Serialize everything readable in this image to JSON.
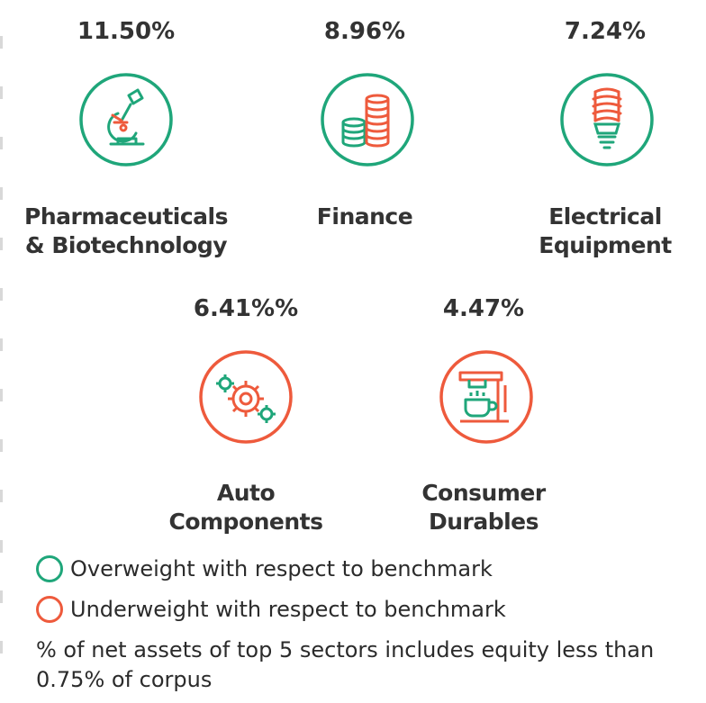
{
  "colors": {
    "overweight": "#1fa67a",
    "underweight": "#ee5a3c"
  },
  "sectors": [
    {
      "percent": "11.50%",
      "label_line1": "Pharmaceuticals",
      "label_line2": "& Biotechnology",
      "weight": "overweight",
      "icon": "microscope-icon"
    },
    {
      "percent": "8.96%",
      "label_line1": "Finance",
      "label_line2": "",
      "weight": "overweight",
      "icon": "coins-icon"
    },
    {
      "percent": "7.24%",
      "label_line1": "Electrical",
      "label_line2": "Equipment",
      "weight": "overweight",
      "icon": "lightbulb-icon"
    },
    {
      "percent": "6.41%%",
      "label_line1": "Auto",
      "label_line2": "Components",
      "weight": "underweight",
      "icon": "gears-icon"
    },
    {
      "percent": "4.47%",
      "label_line1": "Consumer",
      "label_line2": "Durables",
      "weight": "underweight",
      "icon": "coffee-machine-icon"
    }
  ],
  "legend": {
    "overweight": "Overweight with respect to benchmark",
    "underweight": "Underweight with respect to benchmark"
  },
  "note": "% of net assets of top 5 sectors includes equity less than 0.75% of corpus"
}
